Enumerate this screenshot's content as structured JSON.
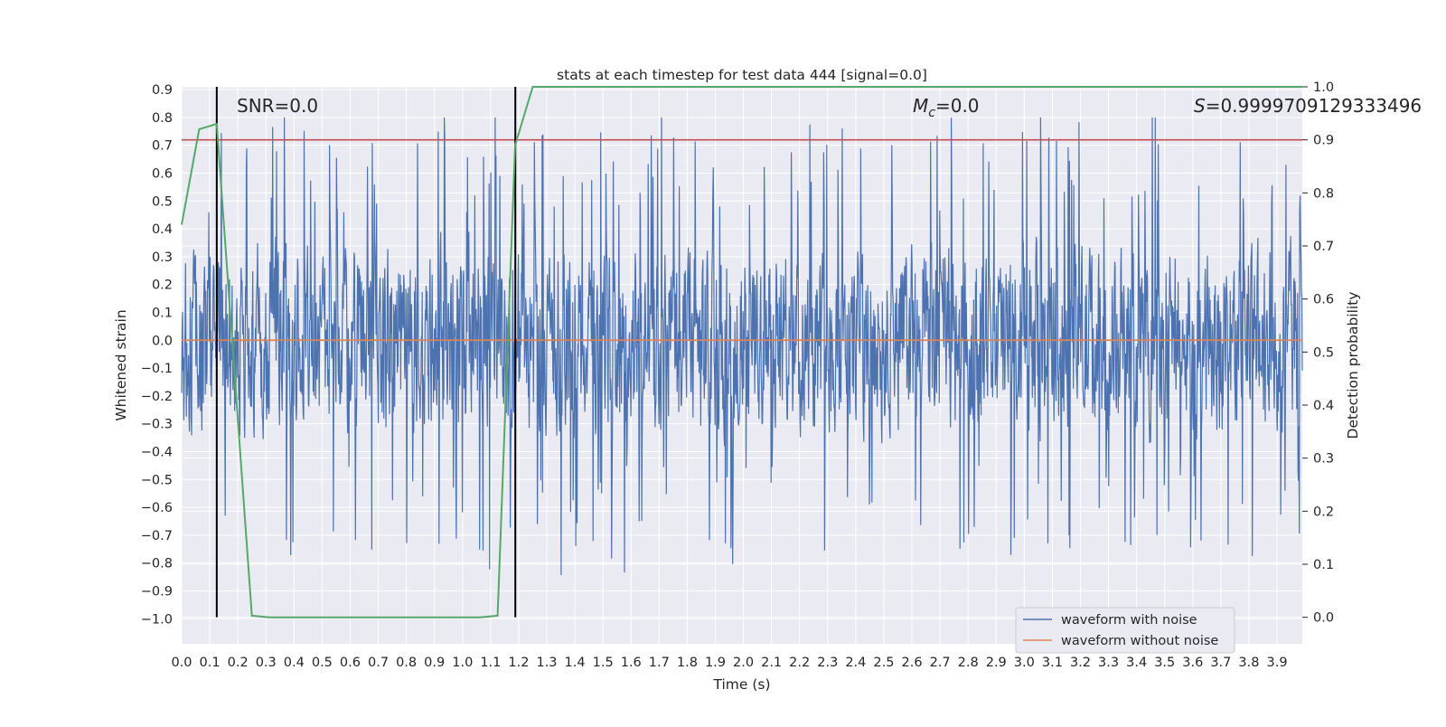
{
  "chart_data": {
    "type": "line",
    "title": "stats at each timestep for test data 444 [signal=0.0]",
    "xlabel": "Time (s)",
    "ylabel": "Whitened strain",
    "y2label": "Detection probability",
    "xlim": [
      0.0,
      3.99
    ],
    "ylim": [
      -1.09,
      0.91
    ],
    "y2lim": [
      -0.05,
      1.0
    ],
    "xticks": [
      "0.0",
      "0.1",
      "0.2",
      "0.3",
      "0.4",
      "0.5",
      "0.6",
      "0.7",
      "0.8",
      "0.9",
      "1.0",
      "1.1",
      "1.2",
      "1.3",
      "1.4",
      "1.5",
      "1.6",
      "1.7",
      "1.8",
      "1.9",
      "2.0",
      "2.1",
      "2.2",
      "2.3",
      "2.4",
      "2.5",
      "2.6",
      "2.7",
      "2.8",
      "2.9",
      "3.0",
      "3.1",
      "3.2",
      "3.3",
      "3.4",
      "3.5",
      "3.6",
      "3.7",
      "3.8",
      "3.9"
    ],
    "yticks": [
      "0.9",
      "0.8",
      "0.7",
      "0.6",
      "0.5",
      "0.4",
      "0.3",
      "0.2",
      "0.1",
      "0.0",
      "−0.1",
      "−0.2",
      "−0.3",
      "−0.4",
      "−0.5",
      "−0.6",
      "−0.7",
      "−0.8",
      "−0.9",
      "−1.0"
    ],
    "y2ticks": [
      "1.0",
      "0.9",
      "0.8",
      "0.7",
      "0.6",
      "0.5",
      "0.4",
      "0.3",
      "0.2",
      "0.1",
      "0.0"
    ],
    "threshold": 0.9,
    "vlines": [
      0.125,
      1.188
    ],
    "annotations": {
      "snr": "SNR=0.0",
      "mc_symbol": "M",
      "mc_sub": "c",
      "mc_value": "=0.0",
      "s_symbol": "S",
      "s_value": "=0.9999709129333496"
    },
    "series": [
      {
        "name": "waveform with noise",
        "color": "#4c72b0",
        "description": "whitened noise, roughly ±0.4 with spikes to about ±0.9",
        "clean_value": 0.0
      },
      {
        "name": "waveform without noise",
        "color": "#dd8452",
        "values": [
          0.0,
          0.0
        ]
      },
      {
        "name": "detection probability",
        "color": "#55a868",
        "axis": "right",
        "x": [
          0.0,
          0.0625,
          0.125,
          0.25,
          0.3125,
          1.0625,
          1.125,
          1.1875,
          1.25,
          3.99
        ],
        "values": [
          0.74,
          0.92,
          0.93,
          0.003,
          0.0,
          0.0,
          0.003,
          0.89,
          1.0,
          1.0
        ]
      },
      {
        "name": "threshold",
        "color": "#c44e52",
        "axis": "right",
        "values": [
          0.9,
          0.9
        ]
      }
    ],
    "legend": {
      "position": "bottom-right",
      "items": [
        "waveform with noise",
        "waveform without noise"
      ]
    }
  }
}
